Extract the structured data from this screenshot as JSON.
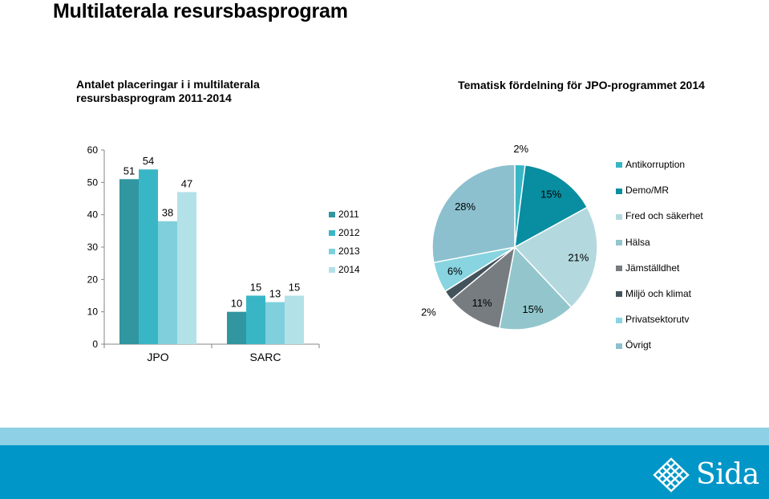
{
  "slide": {
    "title": "Multilaterala resursbasprogram"
  },
  "brand": {
    "name": "Sida",
    "colors": {
      "footer_light": "#8ed0e6",
      "footer_dark": "#0096c8"
    }
  },
  "chart_data": [
    {
      "type": "bar",
      "title": "Antalet placeringar i  i multilaterala resursbasprogram 2011-2014",
      "categories": [
        "JPO",
        "SARC"
      ],
      "series": [
        {
          "name": "2011",
          "values": [
            51,
            10
          ],
          "color": "#31969f"
        },
        {
          "name": "2012",
          "values": [
            54,
            15
          ],
          "color": "#39b6c5"
        },
        {
          "name": "2013",
          "values": [
            38,
            13
          ],
          "color": "#7fd0dc"
        },
        {
          "name": "2014",
          "values": [
            47,
            15
          ],
          "color": "#b3e1e8"
        }
      ],
      "ylim": [
        0,
        60
      ],
      "yticks": [
        "0",
        "10",
        "20",
        "30",
        "40",
        "50",
        "60"
      ],
      "legend": "right"
    },
    {
      "type": "pie",
      "title": "Tematisk fördelning för JPO-programmet 2014",
      "slices": [
        {
          "label": "Antikorruption",
          "value": 2,
          "display": "2%",
          "color": "#39b6c5"
        },
        {
          "label": "Demo/MR",
          "value": 15,
          "display": "15%",
          "color": "#098da0"
        },
        {
          "label": "Fred och säkerhet",
          "value": 21,
          "display": "21%",
          "color": "#b3d9de"
        },
        {
          "label": "Hälsa",
          "value": 15,
          "display": "15%",
          "color": "#92c6cc"
        },
        {
          "label": "Jämställdhet",
          "value": 11,
          "display": "11%",
          "color": "#767c80"
        },
        {
          "label": "Miljö och klimat",
          "value": 2,
          "display": "2%",
          "color": "#43535c"
        },
        {
          "label": "Privatsektorutv",
          "value": 6,
          "display": "6%",
          "color": "#88d4e0"
        },
        {
          "label": "Övrigt",
          "value": 28,
          "display": "28%",
          "color": "#8cc0ce"
        }
      ],
      "legend": "right"
    }
  ]
}
